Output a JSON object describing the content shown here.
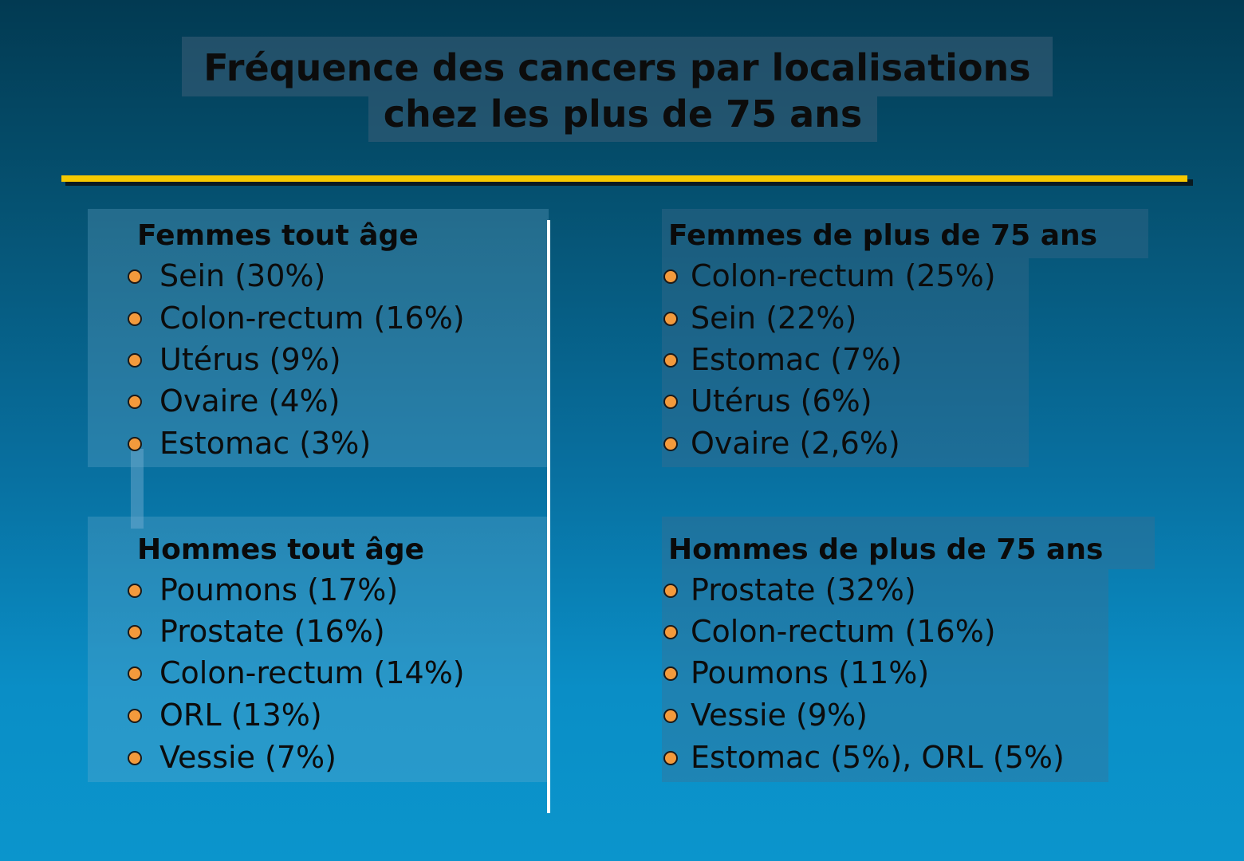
{
  "title": {
    "line1": "Fréquence des cancers par localisations",
    "line2": "chez les plus de 75 ans"
  },
  "colors": {
    "rule": "#f7c900",
    "bullet": "#f39a3c",
    "divider": "#ffffff"
  },
  "sections": {
    "women_all": {
      "title": "Femmes tout âge",
      "items": [
        "Sein (30%)",
        "Colon-rectum (16%)",
        "Utérus (9%)",
        "Ovaire (4%)",
        "Estomac (3%)"
      ]
    },
    "women_75": {
      "title": "Femmes de plus de 75 ans",
      "items": [
        "Colon-rectum (25%)",
        "Sein (22%)",
        "Estomac (7%)",
        "Utérus (6%)",
        "Ovaire (2,6%)"
      ]
    },
    "men_all": {
      "title": "Hommes tout âge",
      "items": [
        "Poumons (17%)",
        "Prostate (16%)",
        "Colon-rectum (14%)",
        "ORL (13%)",
        "Vessie (7%)"
      ]
    },
    "men_75": {
      "title": "Hommes de plus de 75 ans",
      "items": [
        "Prostate (32%)",
        "Colon-rectum (16%)",
        "Poumons (11%)",
        "Vessie (9%)",
        "Estomac (5%), ORL (5%)"
      ]
    }
  }
}
